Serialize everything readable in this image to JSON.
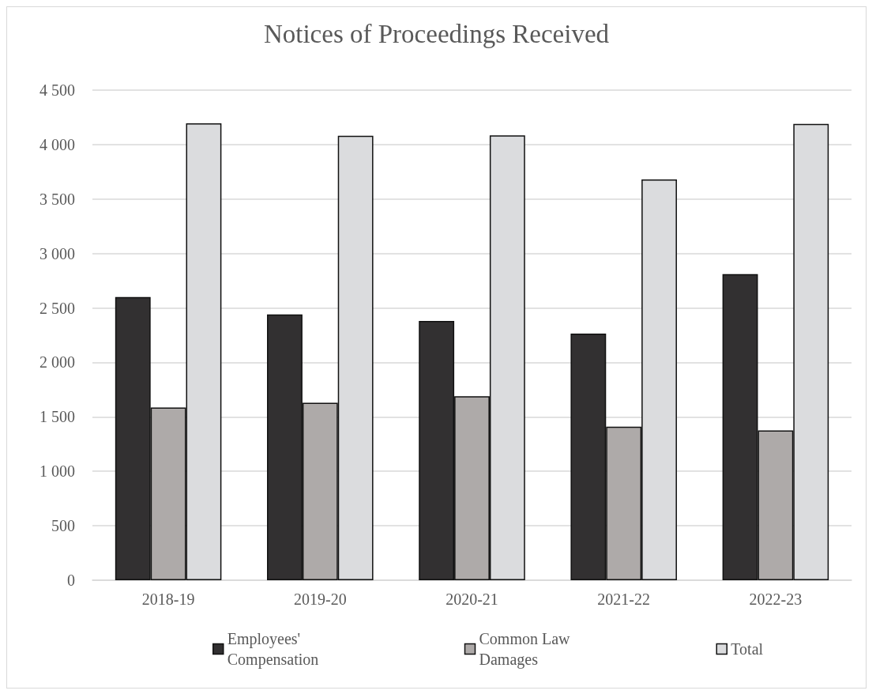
{
  "chart_data": {
    "type": "bar",
    "title": "Notices of Proceedings Received",
    "categories": [
      "2018-19",
      "2019-20",
      "2020-21",
      "2021-22",
      "2022-23"
    ],
    "series": [
      {
        "name": "Employees' Compensation",
        "color": "#323031",
        "values": [
          2600,
          2440,
          2380,
          2265,
          2810
        ]
      },
      {
        "name": "Common Law Damages",
        "color": "#aeaaa9",
        "values": [
          1585,
          1630,
          1690,
          1410,
          1375
        ]
      },
      {
        "name": "Total",
        "color": "#dbdcde",
        "values": [
          4195,
          4080,
          4085,
          3680,
          4190
        ]
      }
    ],
    "ylim": [
      0,
      4500
    ],
    "yticks": [
      0,
      500,
      1000,
      1500,
      2000,
      2500,
      3000,
      3500,
      4000,
      4500
    ],
    "grid": "y",
    "legend": "bottom"
  }
}
